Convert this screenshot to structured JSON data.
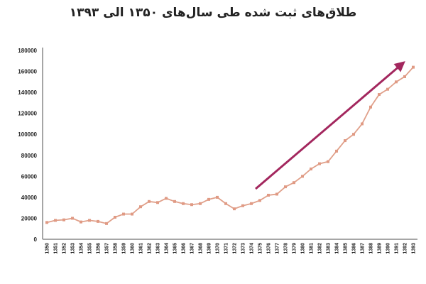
{
  "title": "طلاق‌های ثبت شده طی سال‌های ۱۳۵۰ الی ۱۳۹۳",
  "colors": {
    "line": "#e0a08a",
    "marker": "#e09a84",
    "arrow": "#a3275e",
    "axis": "#888888"
  },
  "chart_data": {
    "type": "line",
    "title": "طلاق‌های ثبت شده طی سال‌های ۱۳۵۰ الی ۱۳۹۳",
    "xlabel": "",
    "ylabel": "",
    "ylim": [
      0,
      180000
    ],
    "yticks": [
      0,
      20000,
      40000,
      60000,
      80000,
      100000,
      120000,
      140000,
      160000,
      180000
    ],
    "grid": false,
    "legend": "none",
    "categories": [
      "1350",
      "1351",
      "1352",
      "1353",
      "1354",
      "1355",
      "1356",
      "1357",
      "1358",
      "1359",
      "1360",
      "1361",
      "1362",
      "1363",
      "1364",
      "1365",
      "1366",
      "1367",
      "1368",
      "1369",
      "1370",
      "1371",
      "1372",
      "1373",
      "1374",
      "1375",
      "1376",
      "1377",
      "1378",
      "1379",
      "1380",
      "1381",
      "1382",
      "1383",
      "1384",
      "1385",
      "1386",
      "1387",
      "1388",
      "1389",
      "1390",
      "1391",
      "1392",
      "1393"
    ],
    "series": [
      {
        "name": "Registered divorces",
        "values": [
          16000,
          18000,
          18500,
          20000,
          16500,
          18000,
          17000,
          15000,
          21000,
          24000,
          24000,
          31000,
          36000,
          35000,
          39000,
          36000,
          34000,
          33000,
          34000,
          38000,
          40000,
          34000,
          29000,
          32000,
          34000,
          37000,
          42000,
          43000,
          50000,
          54000,
          60000,
          67000,
          72000,
          74000,
          84000,
          94000,
          100000,
          110000,
          126000,
          138000,
          143000,
          150000,
          155000,
          164000
        ]
      }
    ],
    "annotations": [
      {
        "type": "arrow",
        "description": "upward trend arrow",
        "from_year": "1375",
        "to_year": "1392"
      }
    ]
  }
}
